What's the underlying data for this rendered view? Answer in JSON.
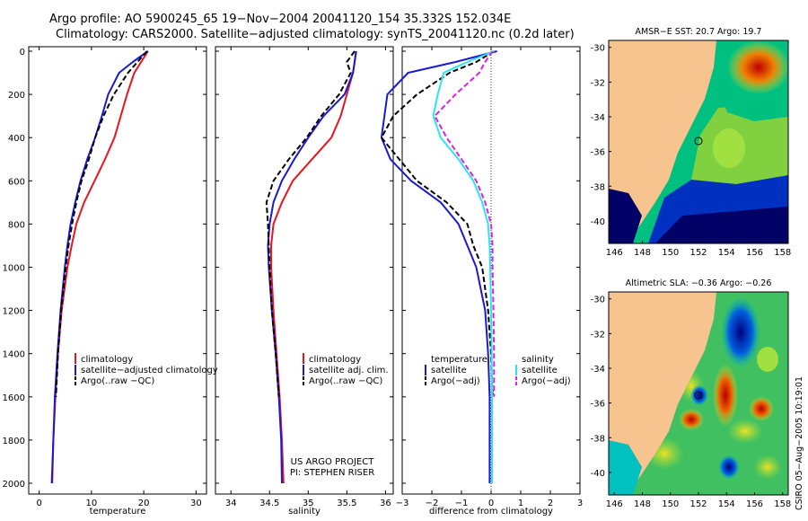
{
  "header": {
    "line1": "Argo profile: AO 5900245_65 19−Nov−2004 20041120_154 35.332S 152.034E",
    "line2": "Climatology: CARS2000. Satellite−adjusted climatology: synTS_20041120.nc (0.2d later)"
  },
  "credit": {
    "line1": "US ARGO PROJECT",
    "line2": "PI: STEPHEN RISER"
  },
  "side_label": "CSIRO 05−Aug−2005 10:19:01",
  "colors": {
    "climatology": "#e8161c",
    "satellite": "#1a1ad6",
    "argo": "#000000",
    "salinity_satellite": "#28e6f0",
    "salinity_argo": "#e020e0",
    "land": "#f7c48f",
    "sst_map": [
      "#000066",
      "#0030c0",
      "#00a0d0",
      "#00c080",
      "#80d040",
      "#f0e020",
      "#f08000",
      "#c00000"
    ],
    "sla_map": [
      "#000080",
      "#0060e0",
      "#00c0c0",
      "#40c060",
      "#a0e040",
      "#f0e020",
      "#f06000",
      "#b00000"
    ]
  },
  "maps": {
    "sst": {
      "title": "AMSR−E SST: 20.7 Argo: 19.7",
      "xticks": [
        "146",
        "148",
        "150",
        "152",
        "154",
        "156",
        "158"
      ],
      "yticks": [
        "-30",
        "-32",
        "-34",
        "-36",
        "-38",
        "-40"
      ],
      "marker_lon": 152.0,
      "marker_lat": -35.3
    },
    "sla": {
      "title": "Altimetric SLA: −0.36 Argo: −0.26",
      "xticks": [
        "146",
        "148",
        "150",
        "152",
        "154",
        "156",
        "158"
      ],
      "yticks": [
        "-30",
        "-32",
        "-34",
        "-36",
        "-38",
        "-40"
      ],
      "marker_lon": 152.0,
      "marker_lat": -35.3
    }
  },
  "chart_data": [
    {
      "type": "line",
      "xlabel": "temperature",
      "xlim": [
        -2,
        32
      ],
      "ylim": [
        2050,
        0
      ],
      "xticks": [
        "0",
        "10",
        "20",
        "30"
      ],
      "yticks": [
        "0",
        "200",
        "400",
        "600",
        "800",
        "1000",
        "1200",
        "1400",
        "1600",
        "1800",
        "2000"
      ],
      "legend": [
        "climatology",
        "satellite−adjusted climatology",
        "Argo(..raw −QC)"
      ],
      "depth": [
        0,
        50,
        100,
        200,
        300,
        400,
        500,
        600,
        700,
        800,
        900,
        1000,
        1200,
        1400,
        1600,
        1800,
        2000
      ],
      "series": [
        {
          "name": "climatology",
          "values": [
            20.8,
            19.5,
            18.2,
            16.8,
            15.6,
            14.4,
            12.6,
            10.6,
            8.6,
            7.1,
            6.2,
            5.4,
            4.3,
            3.6,
            3.1,
            2.7,
            2.5
          ]
        },
        {
          "name": "satellite−adjusted climatology",
          "values": [
            20.8,
            17.9,
            15.3,
            13.2,
            12.0,
            10.7,
            9.2,
            7.9,
            6.9,
            6.0,
            5.4,
            4.9,
            4.1,
            3.5,
            3.0,
            2.7,
            2.4
          ]
        },
        {
          "name": "Argo(..raw −QC)",
          "values": [
            20.6,
            18.8,
            17.0,
            14.3,
            12.3,
            10.7,
            9.5,
            8.1,
            7.1,
            6.3,
            5.6,
            5.1,
            4.2,
            3.6,
            3.2,
            null,
            null
          ]
        }
      ]
    },
    {
      "type": "line",
      "xlabel": "salinity",
      "xlim": [
        33.8,
        36.1
      ],
      "ylim": [
        2050,
        0
      ],
      "xticks": [
        "34",
        "34.5",
        "35",
        "35.5",
        "36"
      ],
      "legend": [
        "climatology",
        "satellite adj. clim.",
        "Argo(..raw −QC)"
      ],
      "depth": [
        0,
        50,
        100,
        200,
        300,
        400,
        500,
        600,
        700,
        800,
        900,
        1000,
        1200,
        1400,
        1600,
        1800,
        2000
      ],
      "series": [
        {
          "name": "climatology",
          "values": [
            35.62,
            35.6,
            35.58,
            35.5,
            35.42,
            35.3,
            35.05,
            34.8,
            34.66,
            34.55,
            34.52,
            34.52,
            34.55,
            34.59,
            34.63,
            34.66,
            34.68
          ]
        },
        {
          "name": "satellite adj. clim.",
          "values": [
            35.62,
            35.6,
            35.58,
            35.47,
            35.2,
            35.0,
            34.82,
            34.66,
            34.55,
            34.5,
            34.48,
            34.49,
            34.53,
            34.58,
            34.62,
            34.65,
            34.66
          ]
        },
        {
          "name": "Argo(..raw −QC)",
          "values": [
            35.6,
            35.5,
            35.55,
            35.4,
            35.17,
            34.98,
            34.75,
            34.55,
            34.46,
            34.48,
            34.49,
            34.5,
            34.53,
            34.58,
            34.62,
            null,
            null
          ]
        }
      ]
    },
    {
      "type": "line",
      "xlabel": "difference from climatology",
      "xlim": [
        -3,
        3
      ],
      "ylim": [
        2050,
        0
      ],
      "xticks": [
        "−3",
        "−2",
        "−1",
        "0",
        "1",
        "2",
        "3"
      ],
      "legend_left": {
        "title": "temperature",
        "items": [
          "satellite",
          "Argo(−adj)"
        ]
      },
      "legend_right": {
        "title": "salinity",
        "items": [
          "satellite",
          "Argo(−adj)"
        ]
      },
      "depth": [
        0,
        50,
        100,
        200,
        300,
        400,
        500,
        600,
        700,
        800,
        900,
        1000,
        1200,
        1400,
        1600,
        1800,
        2000
      ],
      "series": [
        {
          "name": "temperature satellite",
          "values": [
            0.2,
            -1.2,
            -2.8,
            -3.5,
            -3.6,
            -3.7,
            -3.4,
            -2.7,
            -1.7,
            -1.1,
            -0.8,
            -0.5,
            -0.2,
            -0.1,
            -0.05,
            -0.05,
            -0.05
          ]
        },
        {
          "name": "temperature Argo(−adj)",
          "values": [
            0.1,
            -0.5,
            -1.4,
            -2.5,
            -3.3,
            -3.7,
            -3.1,
            -2.5,
            -1.5,
            -0.8,
            -0.6,
            -0.3,
            -0.1,
            0.0,
            0.05,
            null,
            null
          ]
        },
        {
          "name": "salinity satellite",
          "values": [
            0.1,
            -0.8,
            -1.6,
            -1.8,
            -1.95,
            -1.7,
            -1.1,
            -0.6,
            -0.3,
            -0.1,
            -0.05,
            -0.03,
            0.0,
            0.02,
            0.03,
            0.03,
            0.03
          ]
        },
        {
          "name": "salinity Argo(−adj)",
          "values": [
            0.05,
            -0.2,
            -0.4,
            -1.2,
            -1.9,
            -1.5,
            -1.0,
            -0.5,
            -0.2,
            0.0,
            0.05,
            0.05,
            0.08,
            0.1,
            0.1,
            null,
            null
          ]
        }
      ]
    }
  ]
}
